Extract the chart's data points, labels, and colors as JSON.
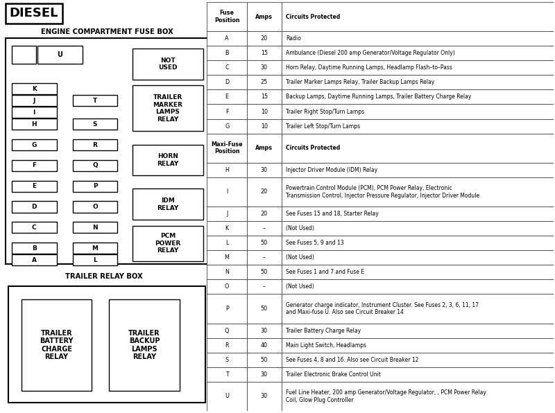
{
  "title": "DIESEL",
  "fuse_box_title": "ENGINE COMPARTMENT FUSE BOX",
  "trailer_box_title": "TRAILER RELAY BOX",
  "bg_color": "#ffffff",
  "fuse_rows": [
    [
      "A",
      "20",
      "Radio"
    ],
    [
      "B",
      "15",
      "Ambulance (Diesel 200 amp Generator/Voltage Regulator Only)"
    ],
    [
      "C",
      "30",
      "Horn Relay, Daytime Running Lamps, Headlamp Flash–to–Pass"
    ],
    [
      "D",
      "25",
      "Trailer Marker Lamps Relay, Trailer Backup Lamps Relay"
    ],
    [
      "E",
      "15",
      "Backup Lamps, Daytime Running Lamps, Trailer Battery Charge Relay"
    ],
    [
      "F",
      "10",
      "Trailer Right Stop/Turn Lamps"
    ],
    [
      "G",
      "10",
      "Trailer Left Stop/Turn Lamps"
    ]
  ],
  "maxi_rows": [
    [
      "H",
      "30",
      "Injector Driver Module (IDM) Relay",
      1
    ],
    [
      "I",
      "20",
      "Powertrain Control Module (PCM), PCM Power Relay, Electronic\nTransmission Control, Injector Pressure Regulator, Injector Driver Module",
      2
    ],
    [
      "J",
      "20",
      "See Fuses 15 and 18, Starter Relay",
      1
    ],
    [
      "K",
      "–",
      "(Not Used)",
      1
    ],
    [
      "L",
      "50",
      "See Fuses 5, 9 and 13",
      1
    ],
    [
      "M",
      "–",
      "(Not Used)",
      1
    ],
    [
      "N",
      "50",
      "See Fuses 1 and 7 and Fuse E",
      1
    ],
    [
      "O",
      "–",
      "(Not Used)",
      1
    ],
    [
      "P",
      "50",
      "Generator charge indicator, Instrument Cluster. See Fuses 2, 3, 6, 11, 17\nand Maxi-fuse U. Also see Circuit Breaker 14",
      2
    ],
    [
      "Q",
      "30",
      "Trailer Battery Charge Relay",
      1
    ],
    [
      "R",
      "40",
      "Main Light Switch, Headlamps",
      1
    ],
    [
      "S",
      "50",
      "See Fuses 4, 8 and 16. Also see Circuit Breaker 12",
      1
    ],
    [
      "T",
      "30",
      "Trailer Electronic Brake Control Unit",
      1
    ],
    [
      "U",
      "30",
      "Fuel Line Heater, 200 amp Generator/Voltage Regulator, , PCM Power Relay\nCoil, Glow Plug Controller",
      2
    ]
  ],
  "relay_labels": [
    "NOT\nUSED",
    "TRAILER\nMARKER\nLAMPS\nRELAY",
    "HORN\nRELAY",
    "IDM\nRELAY",
    "PCM\nPOWER\nRELAY"
  ],
  "relay_y_starts": [
    11.3,
    9.55,
    8.05,
    6.55,
    5.15
  ],
  "relay_heights": [
    1.05,
    1.55,
    1.05,
    1.05,
    1.2
  ],
  "trailer_relays": [
    "TRAILER\nBATTERY\nCHARGE\nRELAY",
    "TRAILER\nBACKUP\nLAMPS\nRELAY"
  ],
  "left_fuses": [
    "K",
    "J",
    "I",
    "H",
    "G",
    "F",
    "E",
    "D",
    "C",
    "B",
    "A"
  ],
  "left_y": [
    11.05,
    10.65,
    10.25,
    9.85,
    9.15,
    8.45,
    7.75,
    7.05,
    6.35,
    5.65,
    5.25
  ],
  "right_fuses_top": [
    [
      "U",
      2.9,
      11.975
    ]
  ],
  "right_fuses": [
    "T",
    "S",
    "R",
    "Q",
    "P",
    "O",
    "N",
    "M",
    "L"
  ],
  "right_y": [
    10.65,
    9.85,
    9.15,
    8.45,
    7.75,
    7.05,
    6.35,
    5.65,
    5.25
  ]
}
